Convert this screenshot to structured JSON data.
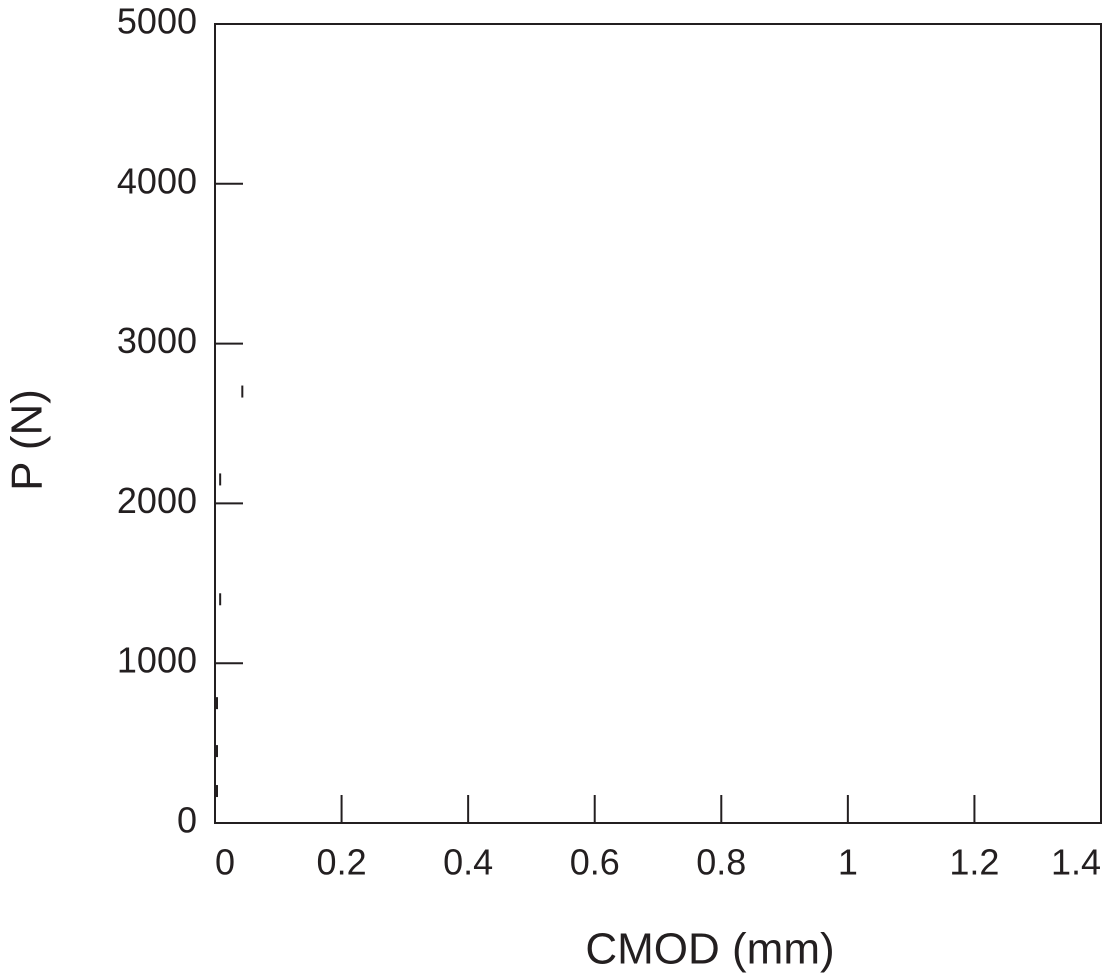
{
  "chart_data": {
    "type": "scatter",
    "x_label": "CMOD (mm)",
    "y_label": "P (N)",
    "x": [
      0,
      0,
      0,
      0.005,
      0.005,
      0.04
    ],
    "values": [
      200,
      450,
      750,
      1400,
      2150,
      2700
    ],
    "color": "#231f20",
    "xlim": [
      0,
      1.4
    ],
    "xticks": [
      0,
      0.2,
      0.4,
      0.6,
      0.8,
      1,
      1.2,
      1.4
    ],
    "ylim": [
      0,
      5000
    ],
    "yticks": [
      0,
      1000,
      2000,
      3000,
      4000,
      5000
    ],
    "grid": false
  }
}
